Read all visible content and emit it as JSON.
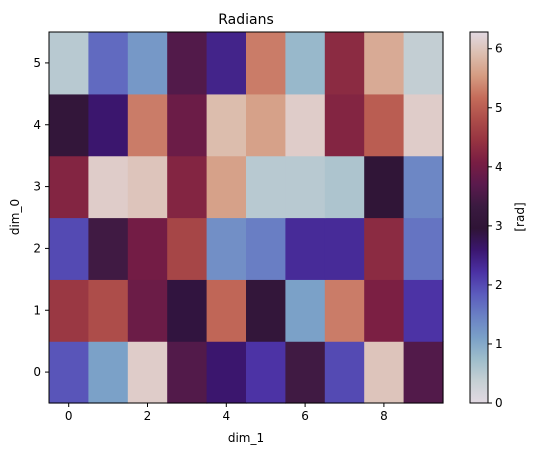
{
  "chart_data": {
    "type": "heatmap",
    "title": "Radians",
    "xlabel": "dim_1",
    "ylabel": "dim_0",
    "x_ticks": [
      0,
      2,
      4,
      6,
      8
    ],
    "y_ticks": [
      0,
      1,
      2,
      3,
      4,
      5
    ],
    "xlim": [
      -0.5,
      9.5
    ],
    "ylim": [
      -0.5,
      5.5
    ],
    "colormap": "twilight_shifted",
    "colorbar": {
      "label": "[rad]",
      "range": [
        0,
        6.283185307
      ],
      "ticks": [
        0,
        1,
        2,
        3,
        4,
        5,
        6
      ],
      "stops": [
        "#e2d9e2",
        "#c6d0d4",
        "#9ebdcb",
        "#7aa0c8",
        "#6a80c4",
        "#5b5bbd",
        "#4b31a4",
        "#3b1670",
        "#2f1436",
        "#3a1a40",
        "#5a1a4d",
        "#781d43",
        "#963341",
        "#ad4d4a",
        "#c56c5a",
        "#d59c82",
        "#dcbeaf",
        "#e2d9e2"
      ]
    },
    "values": [
      [
        1.9,
        1.1,
        6.1,
        3.6,
        2.6,
        2.2,
        3.4,
        2.0,
        6.0,
        3.6
      ],
      [
        4.5,
        4.8,
        3.9,
        2.9,
        5.1,
        3.1,
        1.1,
        5.3,
        4.1,
        2.2
      ],
      [
        2.0,
        3.4,
        4.0,
        4.7,
        1.3,
        1.5,
        2.3,
        2.3,
        4.3,
        1.6
      ],
      [
        4.2,
        6.1,
        6.0,
        4.2,
        5.6,
        0.5,
        0.5,
        0.6,
        3.0,
        1.4
      ],
      [
        3.1,
        2.6,
        5.3,
        3.9,
        5.9,
        5.6,
        6.1,
        4.2,
        5.0,
        6.1
      ],
      [
        0.5,
        1.7,
        1.2,
        3.6,
        2.4,
        5.3,
        0.8,
        4.3,
        5.7,
        0.4
      ]
    ]
  }
}
